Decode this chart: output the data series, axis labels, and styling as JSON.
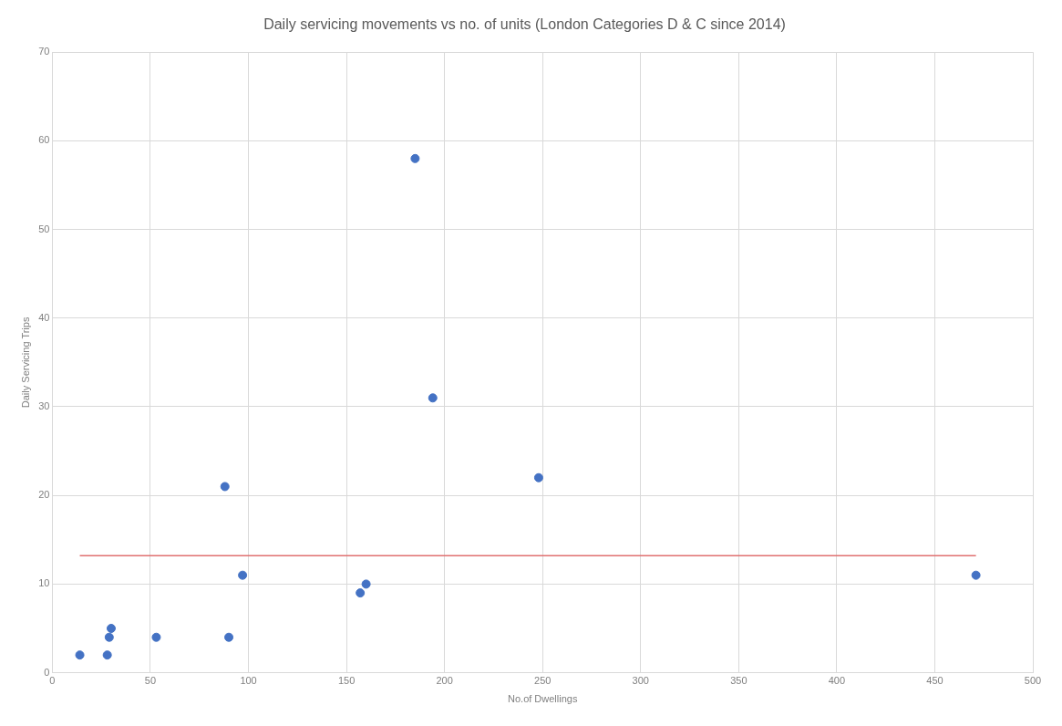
{
  "chart_data": {
    "type": "scatter",
    "title": "Daily servicing movements vs no. of units (London Categories D & C since 2014)",
    "xlabel": "No.of Dwellings",
    "ylabel": "Daily Servicing Trips",
    "series": [
      {
        "color": "#4472c4",
        "marker": "circle",
        "x": [
          14,
          28,
          29,
          30,
          53,
          90,
          88,
          97,
          157,
          160,
          185,
          194,
          248,
          471
        ],
        "values": [
          2,
          2,
          4,
          5,
          4,
          4,
          21,
          11,
          9,
          10,
          58,
          31,
          22,
          11
        ]
      },
      {
        "type": "line",
        "marker": "none",
        "color": "#e07070",
        "x": [
          14,
          471
        ],
        "values": [
          13.2,
          13.2
        ]
      }
    ],
    "xlim": [
      0,
      500
    ],
    "xticks": [
      0,
      50,
      100,
      150,
      200,
      250,
      300,
      350,
      400,
      450,
      500
    ],
    "ylim": [
      0,
      70
    ],
    "yticks": [
      0,
      10,
      20,
      30,
      40,
      50,
      60,
      70
    ],
    "grid": true,
    "legend": false
  }
}
